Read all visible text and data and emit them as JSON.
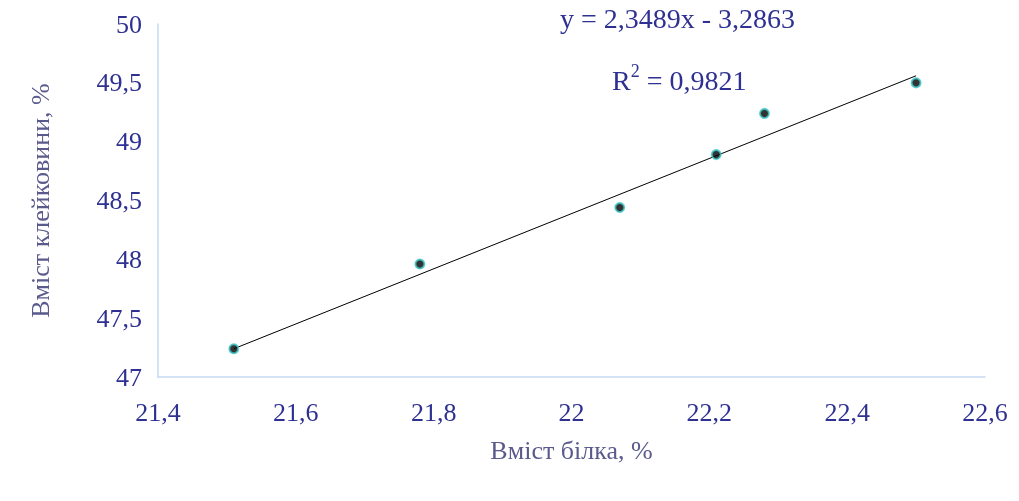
{
  "chart_data": {
    "type": "scatter",
    "xlabel": "Вміст білка, %",
    "ylabel": "Вміст клейковини, %",
    "annotations": [
      "y = 2,3489x - 3,2863",
      "R$^{2}$ = 0,9821"
    ],
    "xlim": [
      21.4,
      22.6
    ],
    "xticks": [
      {
        "value": 21.4,
        "label": "21,4"
      },
      {
        "value": 21.6,
        "label": "21,6"
      },
      {
        "value": 21.8,
        "label": "21,8"
      },
      22,
      {
        "value": 22.2,
        "label": "22,2"
      },
      {
        "value": 22.4,
        "label": "22,4"
      },
      {
        "value": 22.6,
        "label": "22,6"
      }
    ],
    "ylim": [
      47,
      50
    ],
    "yticks": [
      47,
      {
        "value": 47.5,
        "label": "47,5"
      },
      48,
      {
        "value": 48.5,
        "label": "48,5"
      },
      49,
      {
        "value": 49.5,
        "label": "49,5"
      },
      50
    ],
    "grid": false,
    "marker": "circle",
    "series": [
      {
        "color": "#000000",
        "x": [
          21.51,
          21.78,
          22.07,
          22.21,
          22.28,
          22.5
        ],
        "values": [
          47.24,
          47.96,
          48.44,
          48.89,
          49.24,
          49.5
        ]
      },
      {
        "type": "line",
        "color": "#000000",
        "marker": "none",
        "line_style": "solid",
        "x": [
          21.51,
          22.5
        ],
        "values": [
          47.24,
          49.56
        ]
      }
    ]
  }
}
